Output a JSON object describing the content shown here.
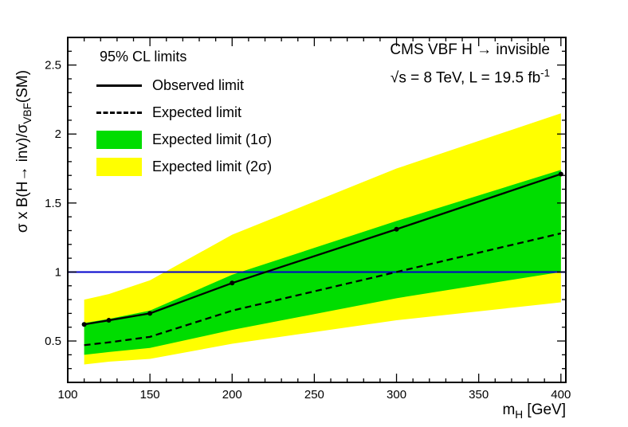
{
  "header": {
    "title": "CMS VBF H → invisible",
    "subtitle_main": "√s = 8 TeV, L = 19.5 fb",
    "subtitle_sup": "-1"
  },
  "legend": {
    "heading": "95% CL limits",
    "items": [
      {
        "label": "Observed limit",
        "swatch": "solid-line"
      },
      {
        "label": "Expected limit",
        "swatch": "dashed-line"
      },
      {
        "label": "Expected limit (1σ)",
        "swatch": "green-box"
      },
      {
        "label": "Expected limit (2σ)",
        "swatch": "yellow-box"
      }
    ]
  },
  "axes": {
    "x_title_main": "m",
    "x_title_sub": "H",
    "x_title_suffix": " [GeV]",
    "y_title_main": "σ x B(H→ inv)/σ",
    "y_title_sub": "VBF",
    "y_title_suffix": "(SM)"
  },
  "colors": {
    "band_1sigma": "#00dd00",
    "band_2sigma": "#ffff00",
    "sm_line": "#0000cc",
    "limit_lines": "#000000",
    "frame": "#000000"
  },
  "chart_data": {
    "type": "line",
    "title": "CMS VBF H → invisible",
    "subtitle": "√s = 8 TeV, L = 19.5 fb⁻¹",
    "xlabel": "m_H [GeV]",
    "ylabel": "σ x B(H→ inv)/σ_VBF(SM)",
    "legend_title": "95% CL limits",
    "legend_position": "top-left",
    "grid": false,
    "xlim": [
      100,
      403
    ],
    "ylim": [
      0.2,
      2.7
    ],
    "x_minor_step": 10,
    "y_minor_step": 0.1,
    "x_ticks": [
      100,
      150,
      200,
      250,
      300,
      350,
      400
    ],
    "x_tick_labels": [
      "100",
      "150",
      "200",
      "250",
      "300",
      "350",
      "400"
    ],
    "y_ticks": [
      0.5,
      1,
      1.5,
      2,
      2.5
    ],
    "y_tick_labels": [
      "0.5",
      "1",
      "1.5",
      "2",
      "2.5"
    ],
    "x": [
      110,
      125,
      150,
      200,
      300,
      400
    ],
    "series": [
      {
        "name": "Observed limit",
        "values": [
          0.62,
          0.65,
          0.7,
          0.92,
          1.31,
          1.71
        ]
      },
      {
        "name": "Expected limit",
        "values": [
          0.47,
          0.49,
          0.53,
          0.72,
          1.0,
          1.28
        ]
      },
      {
        "name": "Expected limit +1σ",
        "values": [
          0.63,
          0.66,
          0.72,
          0.98,
          1.37,
          1.74
        ]
      },
      {
        "name": "Expected limit -1σ",
        "values": [
          0.4,
          0.42,
          0.45,
          0.58,
          0.81,
          1.0
        ]
      },
      {
        "name": "Expected limit +2σ",
        "values": [
          0.8,
          0.84,
          0.94,
          1.27,
          1.75,
          2.15
        ]
      },
      {
        "name": "Expected limit -2σ",
        "values": [
          0.33,
          0.35,
          0.37,
          0.48,
          0.65,
          0.78
        ]
      }
    ],
    "sm_line_y": 1.0
  }
}
